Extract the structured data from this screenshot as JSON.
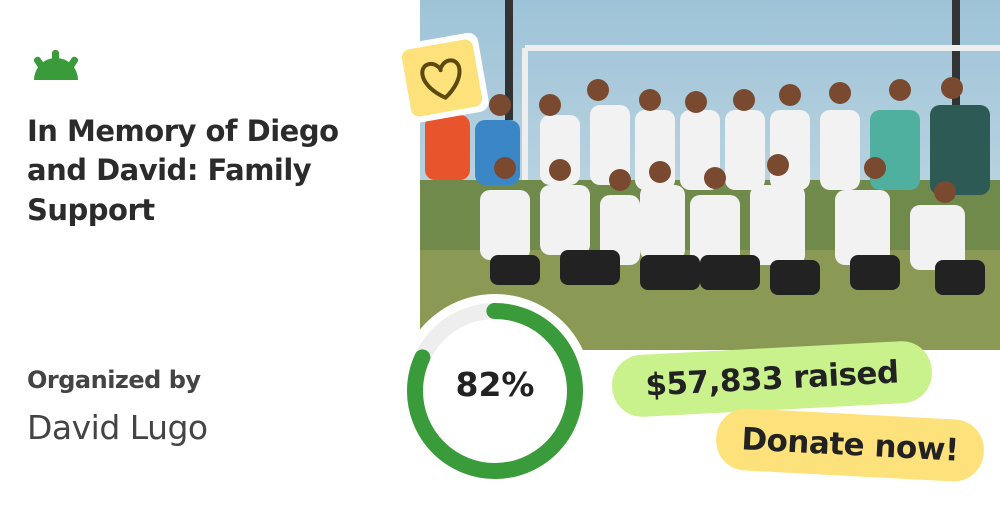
{
  "title": "In Memory of Diego and David: Family Support",
  "organizer": {
    "label": "Organized by",
    "name": "David Lugo"
  },
  "progress": {
    "value": 82,
    "label": "82%"
  },
  "raised": "$57,833 raised",
  "cta": "Donate now!"
}
